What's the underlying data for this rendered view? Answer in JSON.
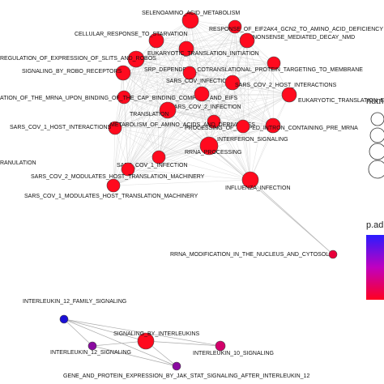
{
  "network": {
    "nodes": [
      {
        "id": "selenoamino",
        "label": "SELENOAMINO_ACID_METABOLISM",
        "color": "#ff0a1e"
      },
      {
        "id": "cellular_starvation",
        "label": "CELLULAR_RESPONSE_TO_STARVATION",
        "color": "#ff0a1e"
      },
      {
        "id": "eif2ak4",
        "label": "RESPONSE_OF_EIF2AK4_GCN2_TO_AMINO_ACID_DEFICIENCY",
        "color": "#ff0a1e"
      },
      {
        "id": "nmd",
        "label": "NONSENSE_MEDIATED_DECAY_NMD",
        "color": "#ff0a1e"
      },
      {
        "id": "slits",
        "label": "REGULATION_OF_EXPRESSION_OF_SLITS_AND_ROBOS",
        "color": "#ff0a1e"
      },
      {
        "id": "eti",
        "label": "EUKARYOTIC_TRANSLATION_INITIATION",
        "color": "#ff0a1e"
      },
      {
        "id": "srp",
        "label": "SRP_DEPENDENT_COTRANSLATIONAL_PROTEIN_TARGETING_TO_MEMBRANE",
        "color": "#ff0a1e"
      },
      {
        "id": "robo",
        "label": "SIGNALING_BY_ROBO_RECEPTORS",
        "color": "#ff0a1e"
      },
      {
        "id": "sars_cov_inf",
        "label": "SARS_COV_INFECTIONS",
        "color": "#ff0a1e"
      },
      {
        "id": "sars2_hi",
        "label": "SARS_COV_2_HOST_INTERACTIONS",
        "color": "#ff0a1e"
      },
      {
        "id": "mrna_cap",
        "label": "ATION_OF_THE_MRNA_UPON_BINDING_OF_THE_CAP_BINDING_COMPLEX_AND_EIFS",
        "color": "#ff0a1e"
      },
      {
        "id": "sars2_inf",
        "label": "SARS_COV_2_INFECTION",
        "color": "#ff0a1e"
      },
      {
        "id": "ete",
        "label": "EUKARYOTIC_TRANSLATION_ELONGATION",
        "color": "#ff0a1e"
      },
      {
        "id": "translation",
        "label": "TRANSLATION",
        "color": "#ff0a1e"
      },
      {
        "id": "sars1_hi",
        "label": "SARS_COV_1_HOST_INTERACTIONS",
        "color": "#ff0a1e"
      },
      {
        "id": "metab_aa",
        "label": "METABOLISM_OF_AMINO_ACIDS_AND_DERIVATIVES",
        "color": "#ff0a1e"
      },
      {
        "id": "capped_intron",
        "label": "PROCESSING_OF_CAPPED_INTRON_CONTAINING_PRE_MRNA",
        "color": "#ff0a1e"
      },
      {
        "id": "interferon",
        "label": "INTERFERON_SIGNALING",
        "color": "#ff0a1e"
      },
      {
        "id": "ranulation",
        "label": "RANULATION",
        "color": "#ff0a1e"
      },
      {
        "id": "rrna_proc",
        "label": "RRNA_PROCESSING",
        "color": "#ff0a1e"
      },
      {
        "id": "sars1_inf",
        "label": "SARS_COV_1_INFECTION",
        "color": "#ff0a1e"
      },
      {
        "id": "sars2_mod",
        "label": "SARS_COV_2_MODULATES_HOST_TRANSLATION_MACHINERY",
        "color": "#ff0a1e"
      },
      {
        "id": "sars1_mod",
        "label": "SARS_COV_1_MODULATES_HOST_TRANSLATION_MACHINERY",
        "color": "#ff0a1e"
      },
      {
        "id": "influenza",
        "label": "INFLUENZA_INFECTION",
        "color": "#ff0a1e"
      },
      {
        "id": "rrna_mod",
        "label": "RRNA_MODIFICATION_IN_THE_NUCLEUS_AND_CYTOSOL",
        "color": "#e8003a"
      },
      {
        "id": "il12_family",
        "label": "INTERLEUKIN_12_FAMILY_SIGNALING",
        "color": "#1a0fd6"
      },
      {
        "id": "signaling_il",
        "label": "SIGNALING_BY_INTERLEUKINS",
        "color": "#ff0a1e"
      },
      {
        "id": "il12_sig",
        "label": "INTERLEUKIN_12_SIGNALING",
        "color": "#8a0aa0"
      },
      {
        "id": "il10_sig",
        "label": "INTERLEUKIN_10_SIGNALING",
        "color": "#d3006a"
      },
      {
        "id": "jak_stat",
        "label": "GENE_AND_PROTEIN_EXPRESSION_BY_JAK_STAT_SIGNALING_AFTER_INTERLEUKIN_12",
        "color": "#8a0aa0"
      }
    ],
    "edges_bottom": [
      [
        "il12_family",
        "signaling_il"
      ],
      [
        "il12_family",
        "il12_sig"
      ],
      [
        "il12_family",
        "jak_stat"
      ],
      [
        "il12_sig",
        "signaling_il"
      ],
      [
        "il12_sig",
        "jak_stat"
      ],
      [
        "signaling_il",
        "il10_sig"
      ],
      [
        "signaling_il",
        "jak_stat"
      ],
      [
        "il12_family",
        "il10_sig"
      ]
    ],
    "edge_color": "#c8c8c8"
  },
  "legend": {
    "size_title": "num",
    "color_title": "p.ad",
    "colors": {
      "high": "#2a1cff",
      "mid": "#c000c0",
      "low": "#ff0020"
    }
  }
}
